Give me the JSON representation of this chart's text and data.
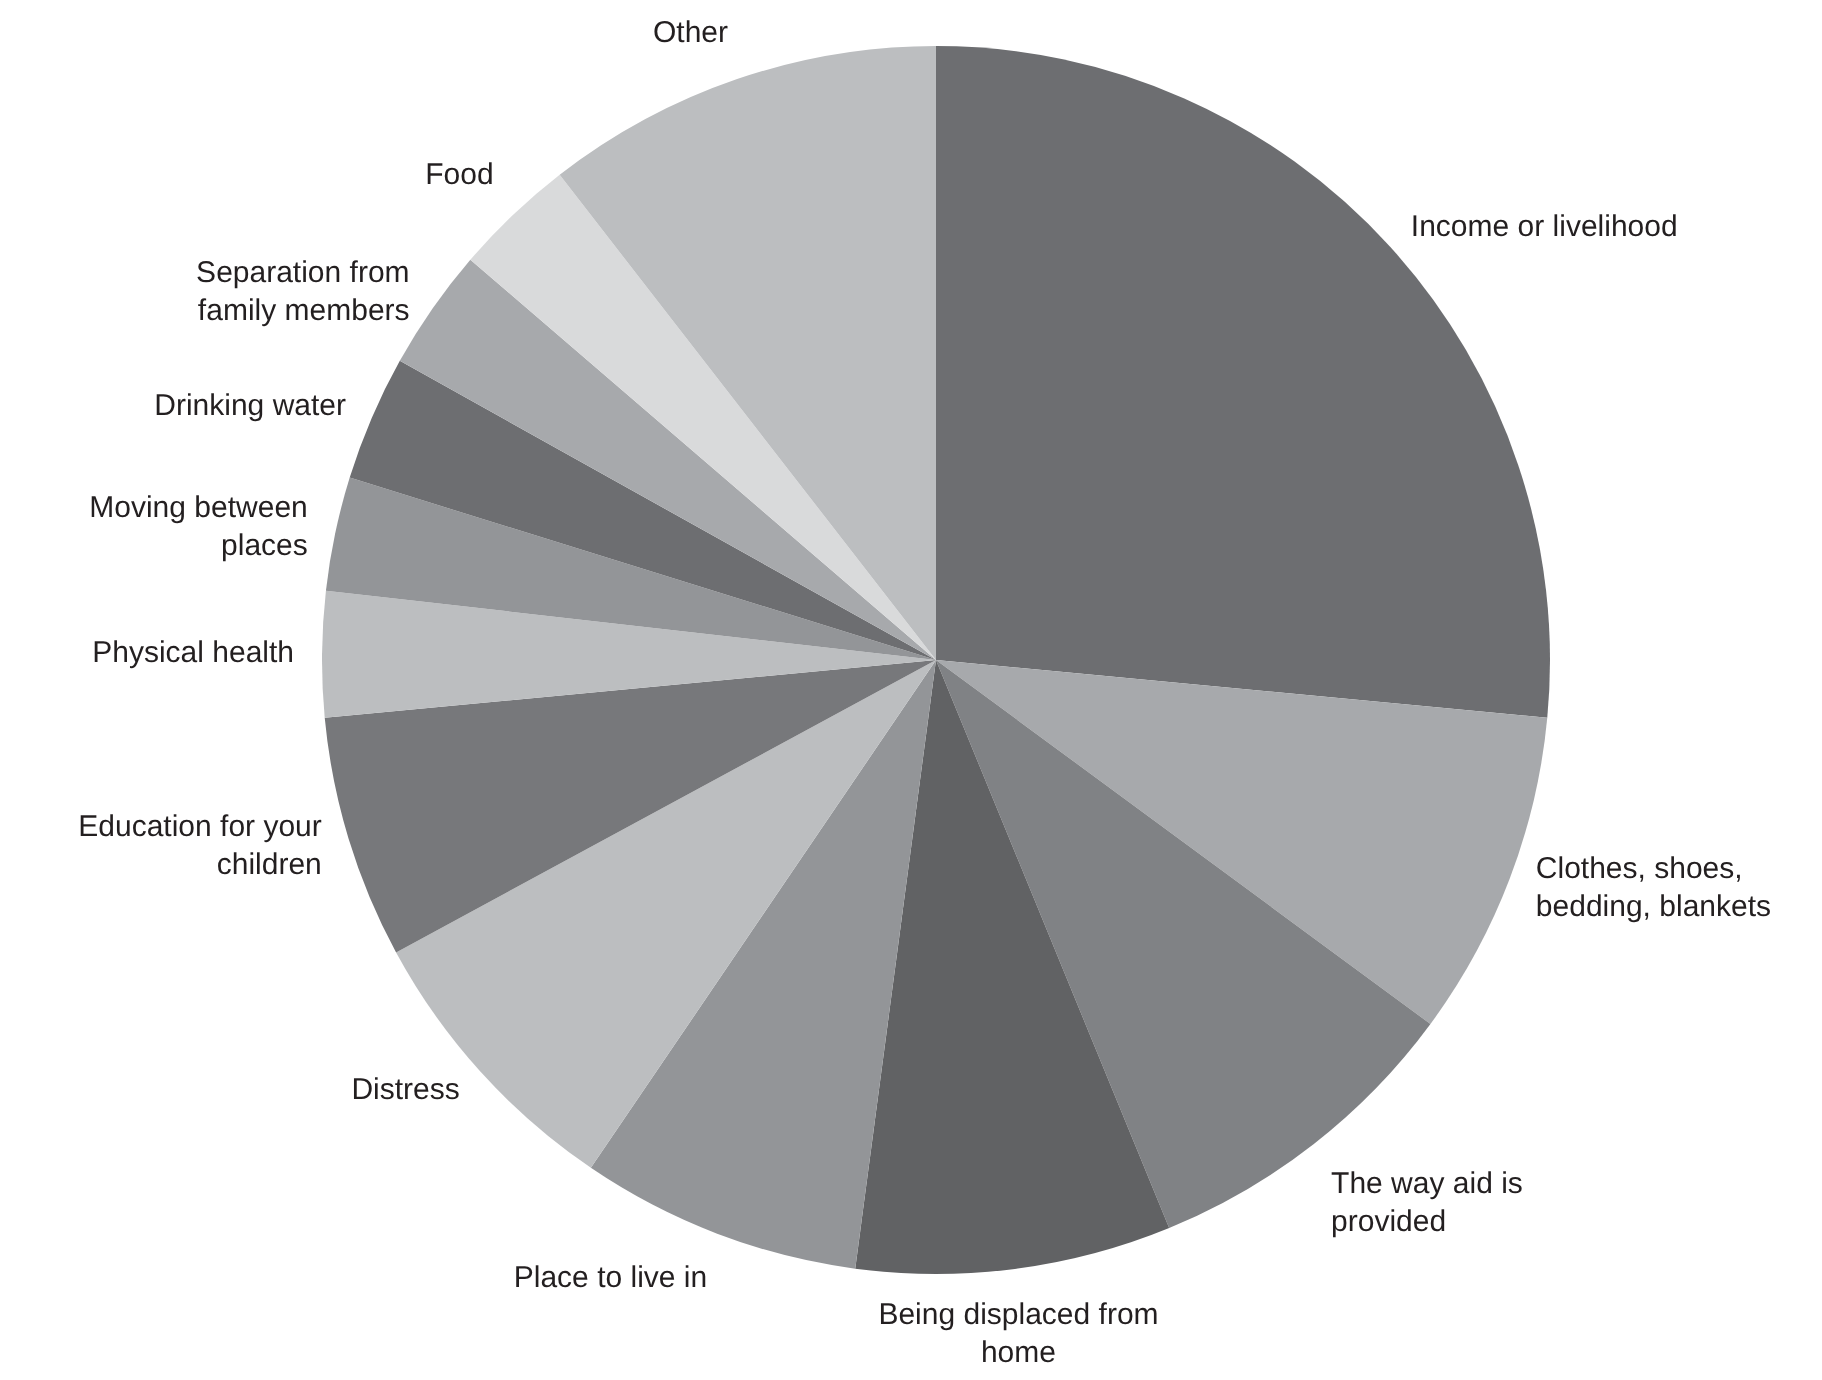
{
  "chart_data": {
    "type": "pie",
    "categories": [
      "Income or livelihood",
      "Clothes, shoes, bedding, blankets",
      "The way aid is provided",
      "Being displaced from home",
      "Place to live in",
      "Distress",
      "Education for your children",
      "Physical health",
      "Moving between places",
      "Drinking water",
      "Separation from family members",
      "Food",
      "Other"
    ],
    "values": [
      26.5,
      8.6,
      8.7,
      8.3,
      7.4,
      7.6,
      6.4,
      3.3,
      3.0,
      3.3,
      3.2,
      3.2,
      10.5
    ],
    "colors": [
      "#6d6e71",
      "#a7a9ac",
      "#808285",
      "#616264",
      "#939598",
      "#bcbec0",
      "#77787b",
      "#bcbec0",
      "#939598",
      "#6d6e71",
      "#a7a9ac",
      "#d9dadb",
      "#bcbec0"
    ],
    "legend": false
  }
}
